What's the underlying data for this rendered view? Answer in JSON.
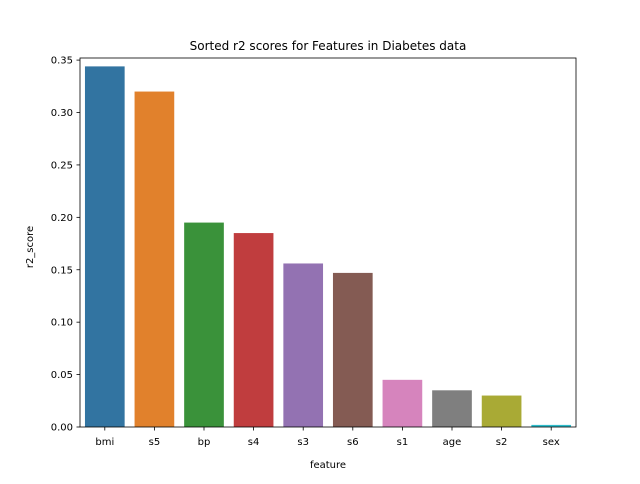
{
  "chart_data": {
    "type": "bar",
    "title": "Sorted r2 scores for Features in Diabetes data",
    "xlabel": "feature",
    "ylabel": "r2_score",
    "categories": [
      "bmi",
      "s5",
      "bp",
      "s4",
      "s3",
      "s6",
      "s1",
      "age",
      "s2",
      "sex"
    ],
    "values": [
      0.344,
      0.32,
      0.195,
      0.185,
      0.156,
      0.147,
      0.045,
      0.035,
      0.03,
      0.002
    ],
    "colors": [
      "#3274a1",
      "#e1812c",
      "#3a923a",
      "#c03d3e",
      "#9372b2",
      "#845b53",
      "#d684bd",
      "#7f7f7f",
      "#a9aa35",
      "#2ebdcb"
    ],
    "ylim": [
      0,
      0.352
    ],
    "yticks": [
      0.0,
      0.05,
      0.1,
      0.15,
      0.2,
      0.25,
      0.3,
      0.35
    ],
    "ytick_labels": [
      "0.00",
      "0.05",
      "0.10",
      "0.15",
      "0.20",
      "0.25",
      "0.30",
      "0.35"
    ],
    "grid": false,
    "legend": "none"
  }
}
